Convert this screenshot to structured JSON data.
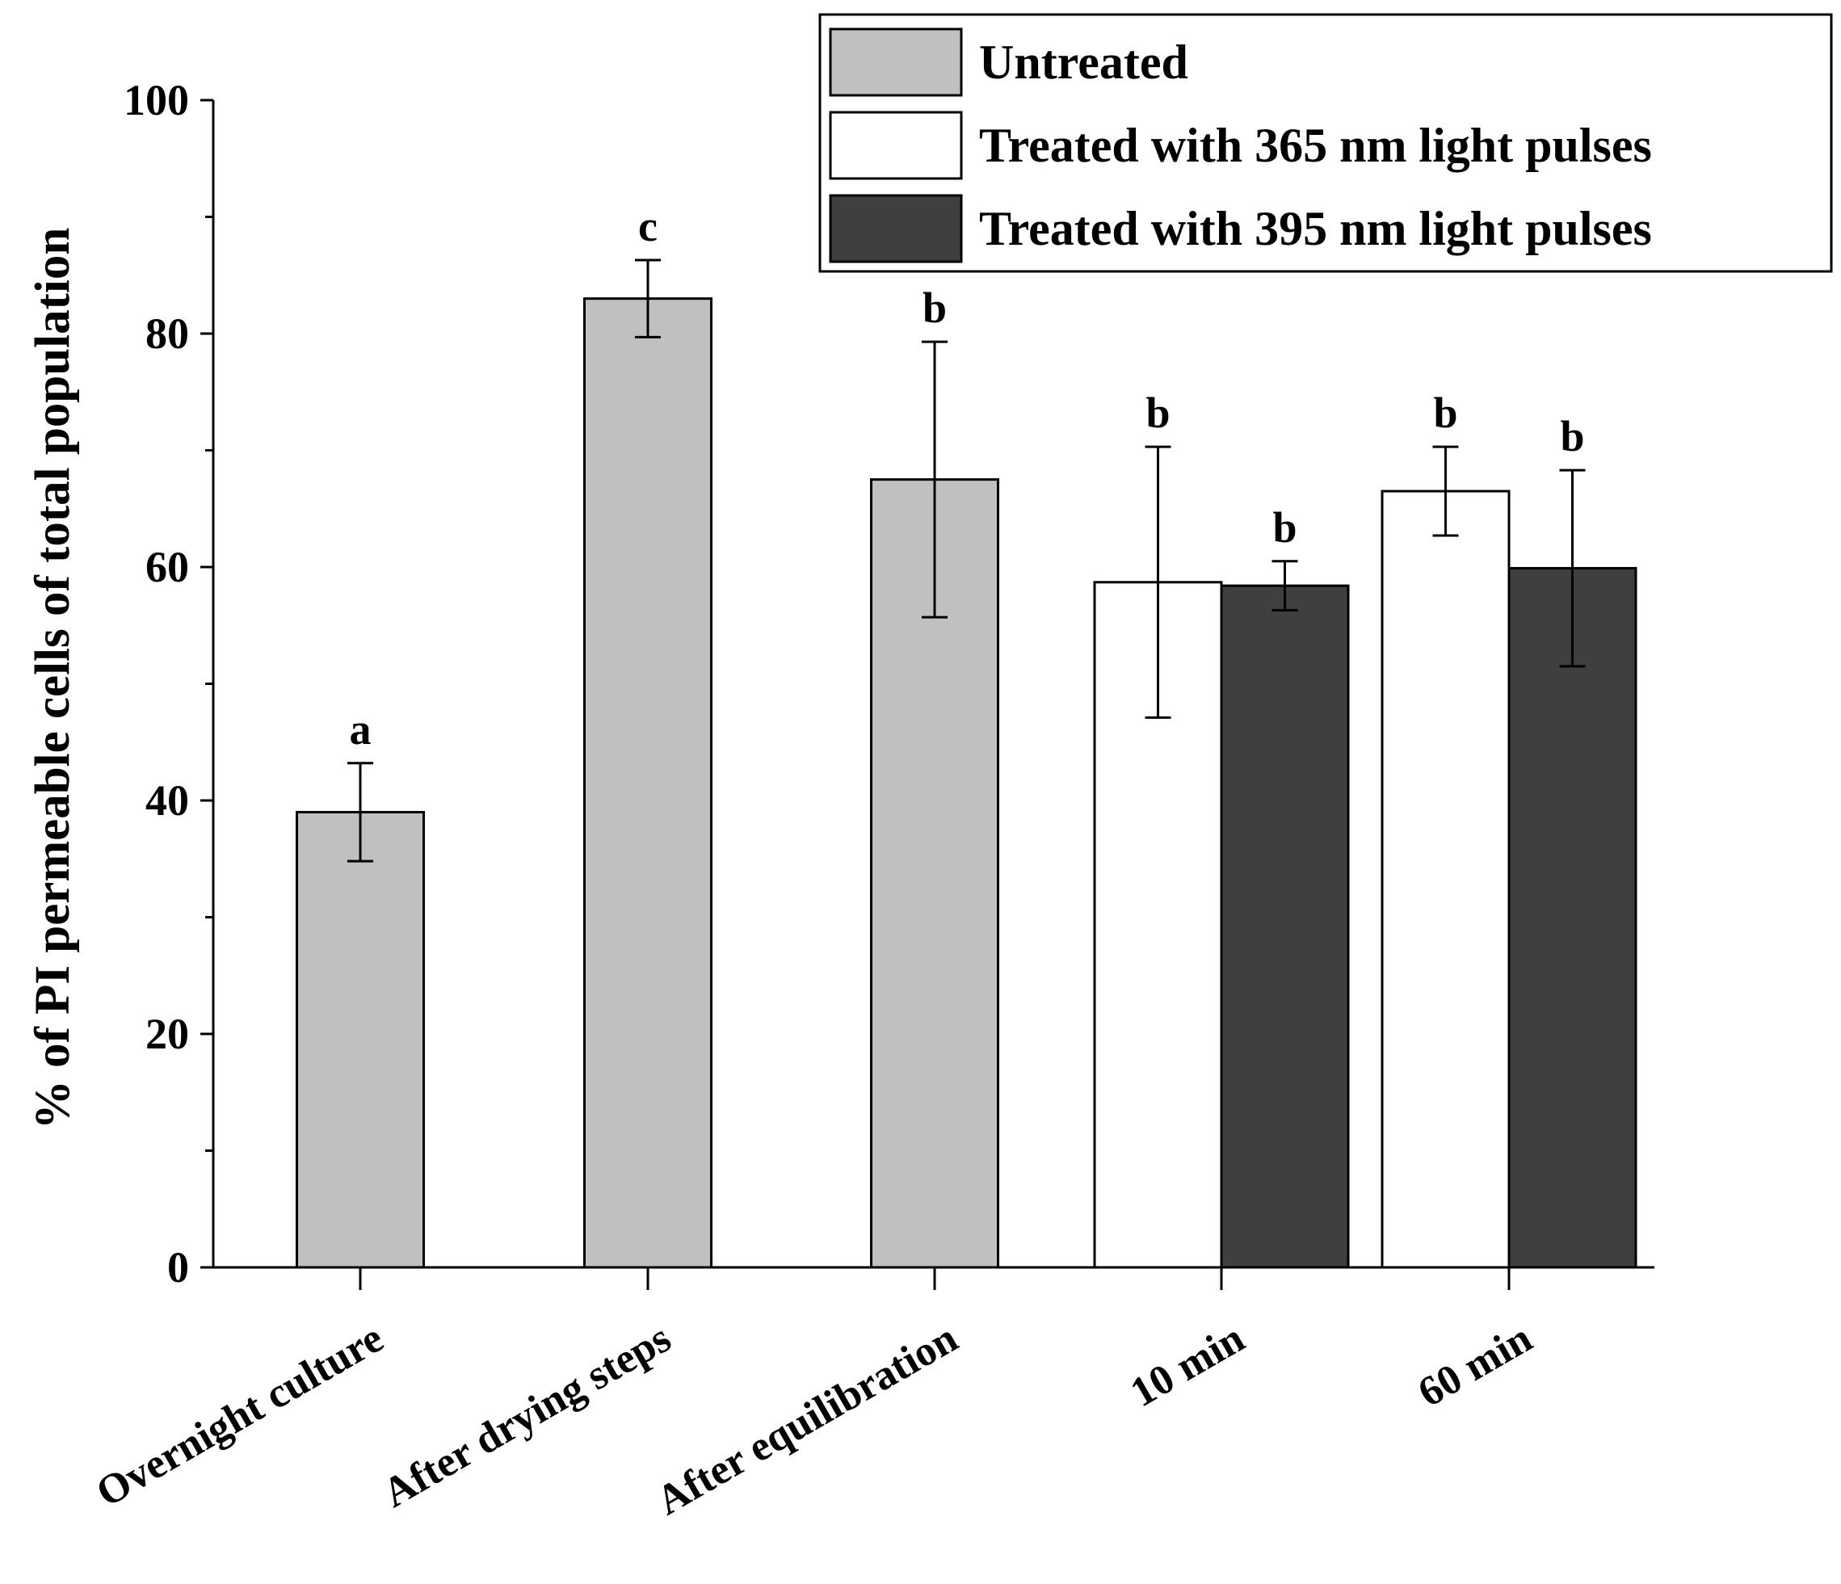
{
  "chart_data": {
    "type": "bar",
    "title": "",
    "xlabel": "",
    "ylabel": "% of PI permeable cells of total population",
    "ylim": [
      0,
      100
    ],
    "yticks": [
      0,
      20,
      40,
      60,
      80,
      100
    ],
    "yminor_step": 10,
    "grid": false,
    "legend_position": "top-right",
    "categories": [
      "Overnight culture",
      "After drying steps",
      "After equilibration",
      "10 min",
      "60 min"
    ],
    "series": [
      {
        "name": "Untreated",
        "color": "#c0c0c0",
        "values": [
          39.0,
          83.0,
          67.5,
          null,
          null
        ],
        "errors": [
          4.2,
          3.3,
          11.8,
          null,
          null
        ],
        "significance": [
          "a",
          "c",
          "b",
          null,
          null
        ]
      },
      {
        "name": "Treated with 365 nm light pulses",
        "color": "#ffffff",
        "values": [
          null,
          null,
          null,
          58.7,
          66.5
        ],
        "errors": [
          null,
          null,
          null,
          11.6,
          3.8
        ],
        "significance": [
          null,
          null,
          null,
          "b",
          "b"
        ]
      },
      {
        "name": "Treated with 395 nm light pulses",
        "color": "#3f3f3f",
        "values": [
          null,
          null,
          null,
          58.4,
          59.9
        ],
        "errors": [
          null,
          null,
          null,
          2.1,
          8.4
        ],
        "significance": [
          null,
          null,
          null,
          "b",
          "b"
        ]
      }
    ]
  }
}
